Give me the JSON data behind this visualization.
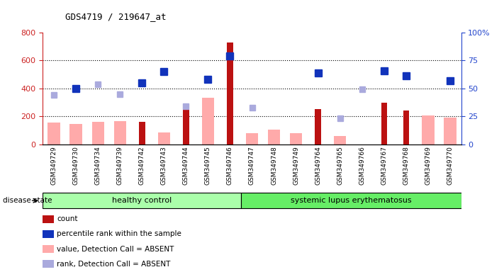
{
  "title": "GDS4719 / 219647_at",
  "samples": [
    "GSM349729",
    "GSM349730",
    "GSM349734",
    "GSM349739",
    "GSM349742",
    "GSM349743",
    "GSM349744",
    "GSM349745",
    "GSM349746",
    "GSM349747",
    "GSM349748",
    "GSM349749",
    "GSM349764",
    "GSM349765",
    "GSM349766",
    "GSM349767",
    "GSM349768",
    "GSM349769",
    "GSM349770"
  ],
  "count": [
    0,
    0,
    0,
    0,
    160,
    0,
    245,
    0,
    730,
    0,
    0,
    0,
    250,
    0,
    0,
    295,
    240,
    0,
    0
  ],
  "percentile_rank": [
    null,
    50,
    null,
    null,
    55,
    65,
    null,
    58,
    79,
    null,
    null,
    null,
    64,
    null,
    null,
    66,
    61,
    null,
    57
  ],
  "value_absent": [
    155,
    145,
    160,
    165,
    null,
    85,
    null,
    335,
    null,
    80,
    105,
    80,
    null,
    60,
    null,
    null,
    null,
    205,
    190
  ],
  "rank_absent": [
    44,
    null,
    54,
    45,
    null,
    null,
    34,
    58,
    null,
    33,
    null,
    null,
    null,
    23,
    49,
    null,
    null,
    null,
    57
  ],
  "group_boundary": 9,
  "groups": [
    "healthy control",
    "systemic lupus erythematosus"
  ],
  "left_ylim": [
    0,
    800
  ],
  "right_ylim": [
    0,
    100
  ],
  "left_yticks": [
    0,
    200,
    400,
    600,
    800
  ],
  "right_yticks": [
    0,
    25,
    50,
    75,
    100
  ],
  "right_yticklabels": [
    "0",
    "25",
    "50",
    "75",
    "100%"
  ],
  "left_axis_color": "#cc2222",
  "right_axis_color": "#2244cc",
  "count_color": "#bb1111",
  "percentile_color": "#1133bb",
  "value_absent_color": "#ffaaaa",
  "rank_absent_color": "#aaaadd",
  "group1_color": "#aaffaa",
  "group2_color": "#66ee66",
  "disease_state_label": "disease state",
  "legend_items": [
    {
      "label": "count",
      "color": "#bb1111"
    },
    {
      "label": "percentile rank within the sample",
      "color": "#1133bb"
    },
    {
      "label": "value, Detection Call = ABSENT",
      "color": "#ffaaaa"
    },
    {
      "label": "rank, Detection Call = ABSENT",
      "color": "#aaaadd"
    }
  ]
}
